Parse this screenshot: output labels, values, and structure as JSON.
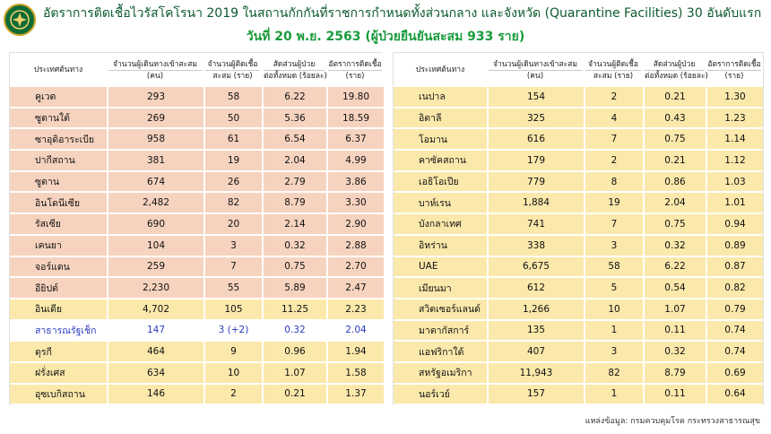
{
  "header": {
    "title": "อัตราการติดเชื้อไวรัสโคโรนา 2019 ในสถานกักกันที่ราชการกำหนดทั้งส่วนกลาง และจังหวัด (Quarantine Facilities) 30 อันดับแรก",
    "subtitle": "วันที่ 20 พ.ย. 2563  (ผู้ป่วยยืนยันสะสม 933 ราย)"
  },
  "columns": {
    "country": "ประเทศต้นทาง",
    "travelers": "จำนวนผู้เดินทางเข้าสะสม",
    "travelers_unit": "(คน)",
    "infected": "จำนวนผู้ติดเชื้อ",
    "infected_unit": "สะสม (ราย)",
    "ratio": "สัดส่วนผู้ป่วย",
    "ratio_unit": "ต่อทั้งหมด (ร้อยละ)",
    "rate": "อัตราการติดเชื้อ",
    "rate_unit": "(ราย)"
  },
  "left_rows": [
    {
      "country": "คูเวต",
      "travelers": "293",
      "infected": "58",
      "ratio": "6.22",
      "rate": "19.80",
      "style": "salmon"
    },
    {
      "country": "ซูดานใต้",
      "travelers": "269",
      "infected": "50",
      "ratio": "5.36",
      "rate": "18.59",
      "style": "salmon"
    },
    {
      "country": "ซาอุดิอาระเบีย",
      "travelers": "958",
      "infected": "61",
      "ratio": "6.54",
      "rate": "6.37",
      "style": "salmon"
    },
    {
      "country": "ปากีสถาน",
      "travelers": "381",
      "infected": "19",
      "ratio": "2.04",
      "rate": "4.99",
      "style": "salmon"
    },
    {
      "country": "ซูดาน",
      "travelers": "674",
      "infected": "26",
      "ratio": "2.79",
      "rate": "3.86",
      "style": "salmon"
    },
    {
      "country": "อินโดนีเซีย",
      "travelers": "2,482",
      "infected": "82",
      "ratio": "8.79",
      "rate": "3.30",
      "style": "salmon"
    },
    {
      "country": "รัสเซีย",
      "travelers": "690",
      "infected": "20",
      "ratio": "2.14",
      "rate": "2.90",
      "style": "salmon"
    },
    {
      "country": "เคนยา",
      "travelers": "104",
      "infected": "3",
      "ratio": "0.32",
      "rate": "2.88",
      "style": "salmon"
    },
    {
      "country": "จอร์แดน",
      "travelers": "259",
      "infected": "7",
      "ratio": "0.75",
      "rate": "2.70",
      "style": "salmon"
    },
    {
      "country": "อียิปต์",
      "travelers": "2,230",
      "infected": "55",
      "ratio": "5.89",
      "rate": "2.47",
      "style": "salmon"
    },
    {
      "country": "อินเดีย",
      "travelers": "4,702",
      "infected": "105",
      "ratio": "11.25",
      "rate": "2.23",
      "style": "yellow"
    },
    {
      "country": "สาธารณรัฐเช็ก",
      "travelers": "147",
      "infected": "3 (+2)",
      "ratio": "0.32",
      "rate": "2.04",
      "style": "white-blue"
    },
    {
      "country": "ตุรกี",
      "travelers": "464",
      "infected": "9",
      "ratio": "0.96",
      "rate": "1.94",
      "style": "yellow"
    },
    {
      "country": "ฝรั่งเศส",
      "travelers": "634",
      "infected": "10",
      "ratio": "1.07",
      "rate": "1.58",
      "style": "yellow"
    },
    {
      "country": "อุซเบกิสถาน",
      "travelers": "146",
      "infected": "2",
      "ratio": "0.21",
      "rate": "1.37",
      "style": "yellow"
    }
  ],
  "right_rows": [
    {
      "country": "เนปาล",
      "travelers": "154",
      "infected": "2",
      "ratio": "0.21",
      "rate": "1.30",
      "style": "yellow"
    },
    {
      "country": "อิตาลี",
      "travelers": "325",
      "infected": "4",
      "ratio": "0.43",
      "rate": "1.23",
      "style": "yellow"
    },
    {
      "country": "โอมาน",
      "travelers": "616",
      "infected": "7",
      "ratio": "0.75",
      "rate": "1.14",
      "style": "yellow"
    },
    {
      "country": "คาซัคสถาน",
      "travelers": "179",
      "infected": "2",
      "ratio": "0.21",
      "rate": "1.12",
      "style": "yellow"
    },
    {
      "country": "เอธิโอเปีย",
      "travelers": "779",
      "infected": "8",
      "ratio": "0.86",
      "rate": "1.03",
      "style": "yellow"
    },
    {
      "country": "บาห์เรน",
      "travelers": "1,884",
      "infected": "19",
      "ratio": "2.04",
      "rate": "1.01",
      "style": "yellow"
    },
    {
      "country": "บังกลาเทศ",
      "travelers": "741",
      "infected": "7",
      "ratio": "0.75",
      "rate": "0.94",
      "style": "yellow"
    },
    {
      "country": "อิหร่าน",
      "travelers": "338",
      "infected": "3",
      "ratio": "0.32",
      "rate": "0.89",
      "style": "yellow"
    },
    {
      "country": "UAE",
      "travelers": "6,675",
      "infected": "58",
      "ratio": "6.22",
      "rate": "0.87",
      "style": "yellow"
    },
    {
      "country": "เมียนมา",
      "travelers": "612",
      "infected": "5",
      "ratio": "0.54",
      "rate": "0.82",
      "style": "yellow"
    },
    {
      "country": "สวิตเซอร์แลนด์",
      "travelers": "1,266",
      "infected": "10",
      "ratio": "1.07",
      "rate": "0.79",
      "style": "yellow"
    },
    {
      "country": "มาตากัสการ์",
      "travelers": "135",
      "infected": "1",
      "ratio": "0.11",
      "rate": "0.74",
      "style": "yellow"
    },
    {
      "country": "แอฟริกาใต้",
      "travelers": "407",
      "infected": "3",
      "ratio": "0.32",
      "rate": "0.74",
      "style": "yellow"
    },
    {
      "country": "สหรัฐอเมริกา",
      "travelers": "11,943",
      "infected": "82",
      "ratio": "8.79",
      "rate": "0.69",
      "style": "yellow"
    },
    {
      "country": "นอร์เวย์",
      "travelers": "157",
      "infected": "1",
      "ratio": "0.11",
      "rate": "0.64",
      "style": "yellow"
    }
  ],
  "footer": {
    "source": "แหล่งข้อมูล: กรมควบคุมโรค กระทรวงสาธารณสุข"
  },
  "colors": {
    "salmon_row": "#f6d3bf",
    "yellow_row": "#fbe8ab",
    "highlight_text": "#2b3bbf",
    "title_green": "#0b5a2c",
    "subtitle_green": "#1a9b3c"
  }
}
